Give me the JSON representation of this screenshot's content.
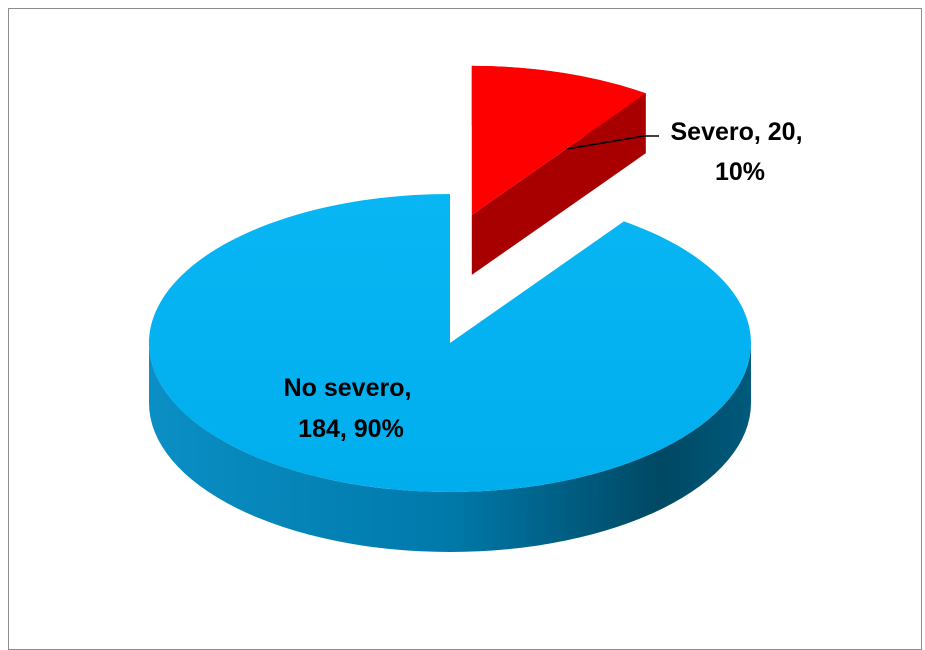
{
  "chart_data": {
    "type": "pie",
    "title": "",
    "slices": [
      {
        "name": "No severo",
        "value": 184,
        "percent": 90,
        "color": "#00b0f0",
        "side_color": "#0086bb",
        "label_lines": [
          "No severo,",
          "184, 90%"
        ]
      },
      {
        "name": "Severo",
        "value": 20,
        "percent": 10,
        "color": "#ff0000",
        "side_color": "#c00000",
        "label_lines": [
          "Severo, 20,",
          "10%"
        ]
      }
    ],
    "legend": "none",
    "style": "3d-exploded"
  }
}
